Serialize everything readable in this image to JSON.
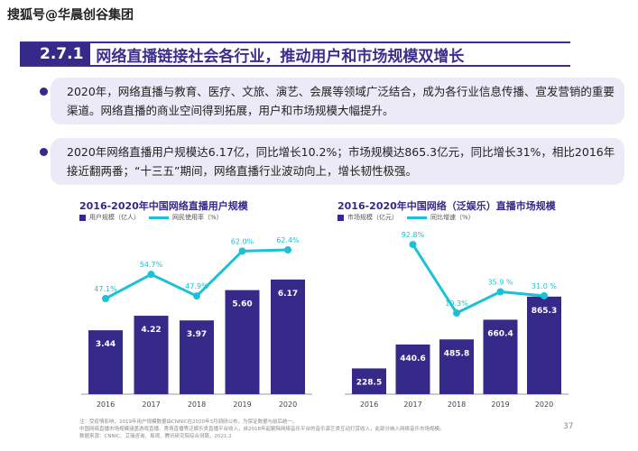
{
  "watermark": "搜狐号@华晨创谷集团",
  "header": {
    "section": "2.7.1",
    "title": "网络直播链接社会各行业，推动用户和市场规模双增长"
  },
  "bullets": [
    "2020年，网络直播与教育、医疗、文旅、演艺、会展等领域广泛结合，成为各行业信息传播、宣发营销的重要渠道。网络直播的商业空间得到拓展，用户和市场规模大幅提升。",
    "2020年网络直播用户规模达6.17亿，同比增长10.2%；市场规模达865.3亿元，同比增长31%，相比2016年接近翻两番；“十三五”期间，网络直播行业波动向上，增长韧性极强。"
  ],
  "colors": {
    "bar": "#35298a",
    "line": "#1cc1d6"
  },
  "chart_data": [
    {
      "type": "bar+line",
      "title": "2016-2020年中国网络直播用户规模",
      "categories": [
        "2016",
        "2017",
        "2018",
        "2019",
        "2020"
      ],
      "series": [
        {
          "name": "用户规模（亿人）",
          "type": "bar",
          "values": [
            3.44,
            4.22,
            3.97,
            5.6,
            6.17
          ],
          "labels": [
            "3.44",
            "4.22",
            "3.97",
            "5.60",
            "6.17"
          ]
        },
        {
          "name": "网民使用率（%）",
          "type": "line",
          "values": [
            47.1,
            54.7,
            47.9,
            62.0,
            62.4
          ],
          "labels": [
            "47.1%",
            "54.7%",
            "47.9%",
            "62.0%",
            "62.4%"
          ]
        }
      ]
    },
    {
      "type": "bar+line",
      "title": "2016-2020年中国网络（泛娱乐）直播市场规模",
      "categories": [
        "2016",
        "2017",
        "2018",
        "2019",
        "2020"
      ],
      "series": [
        {
          "name": "市场规模（亿元）",
          "type": "bar",
          "values": [
            228.5,
            440.6,
            485.8,
            660.4,
            865.3
          ],
          "labels": [
            "228.5",
            "440.6",
            "485.8",
            "660.4",
            "865.3"
          ]
        },
        {
          "name": "同比增速（%）",
          "type": "line",
          "values": [
            null,
            92.8,
            10.3,
            35.9,
            31.0
          ],
          "labels": [
            "",
            "92.8%",
            "10.3%",
            "35.9 %",
            "31.0 %"
          ]
        }
      ]
    }
  ],
  "notes": [
    "注：受疫情影响，2019年用户规模数据由CNNIC在2020年3月调研公布，为保证数据与前后统一。",
    "中国网络直播市场规模涵盖游戏直播、秀场直播等泛娱乐类直播平台收入，自2018年起剔除网络音乐平台的音乐演艺类互动打赏收入，此部分纳入网络音乐市场规模。",
    "数据来源：CNNIC、艾瑞咨询、易观、腾讯研究院综合测算，2021.2"
  ],
  "page_number": "37"
}
